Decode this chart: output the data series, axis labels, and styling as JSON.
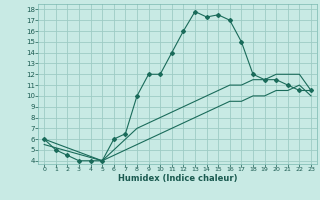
{
  "title": "",
  "xlabel": "Humidex (Indice chaleur)",
  "bg_color": "#c8eae4",
  "grid_color": "#9dccc4",
  "line_color": "#1a6b5a",
  "xlim": [
    -0.5,
    23.5
  ],
  "ylim": [
    3.7,
    18.5
  ],
  "xticks": [
    0,
    1,
    2,
    3,
    4,
    5,
    6,
    7,
    8,
    9,
    10,
    11,
    12,
    13,
    14,
    15,
    16,
    17,
    18,
    19,
    20,
    21,
    22,
    23
  ],
  "yticks": [
    4,
    5,
    6,
    7,
    8,
    9,
    10,
    11,
    12,
    13,
    14,
    15,
    16,
    17,
    18
  ],
  "curve1_x": [
    0,
    1,
    2,
    3,
    4,
    5,
    6,
    7,
    8,
    9,
    10,
    11,
    12,
    13,
    14,
    15,
    16,
    17,
    18,
    19,
    20,
    21,
    22,
    23
  ],
  "curve1_y": [
    6.0,
    5.0,
    4.5,
    4.0,
    4.0,
    4.0,
    6.0,
    6.5,
    10.0,
    12.0,
    12.0,
    14.0,
    16.0,
    17.8,
    17.3,
    17.5,
    17.0,
    15.0,
    12.0,
    11.5,
    11.5,
    11.0,
    10.5,
    10.5
  ],
  "curve2_x": [
    0,
    5,
    6,
    7,
    8,
    9,
    10,
    11,
    12,
    13,
    14,
    15,
    16,
    17,
    18,
    19,
    20,
    21,
    22,
    23
  ],
  "curve2_y": [
    6.0,
    4.0,
    5.0,
    6.0,
    7.0,
    7.5,
    8.0,
    8.5,
    9.0,
    9.5,
    10.0,
    10.5,
    11.0,
    11.0,
    11.5,
    11.5,
    12.0,
    12.0,
    12.0,
    10.5
  ],
  "curve3_x": [
    0,
    5,
    6,
    7,
    8,
    9,
    10,
    11,
    12,
    13,
    14,
    15,
    16,
    17,
    18,
    19,
    20,
    21,
    22,
    23
  ],
  "curve3_y": [
    5.5,
    4.0,
    4.5,
    5.0,
    5.5,
    6.0,
    6.5,
    7.0,
    7.5,
    8.0,
    8.5,
    9.0,
    9.5,
    9.5,
    10.0,
    10.0,
    10.5,
    10.5,
    11.0,
    10.0
  ]
}
